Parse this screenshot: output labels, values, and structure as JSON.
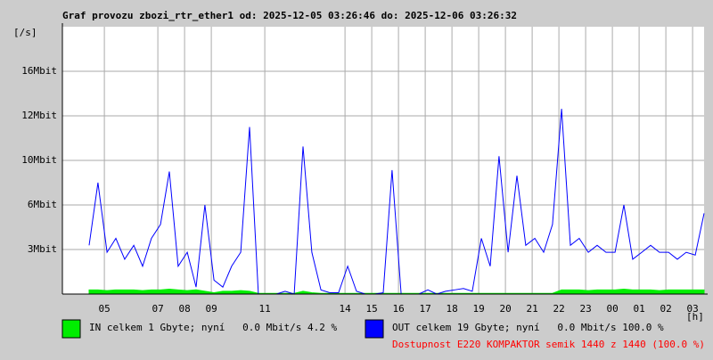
{
  "chart_data": {
    "type": "line",
    "title": "Graf provozu zbozi_rtr_ether1 od: 2025-12-05 03:26:46 do: 2025-12-06 03:26:32",
    "y_unit": "[/s]",
    "x_unit": "[h]",
    "note": "Dostupnost E220 KOMPAKTOR semik 1440 z 1440 (100.0 %)",
    "grid": true,
    "xlim": [
      0,
      24
    ],
    "ylim": [
      0,
      19.2
    ],
    "yticks": [
      {
        "value": 3.2,
        "label": "3Mbit"
      },
      {
        "value": 6.4,
        "label": "6Mbit"
      },
      {
        "value": 9.6,
        "label": "10Mbit"
      },
      {
        "value": 12.8,
        "label": "12Mbit"
      },
      {
        "value": 16,
        "label": "16Mbit"
      }
    ],
    "xticks": [
      {
        "value": 1.57,
        "label": "05"
      },
      {
        "value": 3.57,
        "label": "07"
      },
      {
        "value": 4.57,
        "label": "08"
      },
      {
        "value": 5.57,
        "label": "09"
      },
      {
        "value": 7.57,
        "label": "11"
      },
      {
        "value": 10.57,
        "label": "14"
      },
      {
        "value": 11.57,
        "label": "15"
      },
      {
        "value": 12.57,
        "label": "16"
      },
      {
        "value": 13.57,
        "label": "17"
      },
      {
        "value": 14.57,
        "label": "18"
      },
      {
        "value": 15.57,
        "label": "19"
      },
      {
        "value": 16.57,
        "label": "20"
      },
      {
        "value": 17.57,
        "label": "21"
      },
      {
        "value": 18.57,
        "label": "22"
      },
      {
        "value": 19.57,
        "label": "23"
      },
      {
        "value": 20.57,
        "label": "00"
      },
      {
        "value": 21.57,
        "label": "01"
      },
      {
        "value": 22.57,
        "label": "02"
      },
      {
        "value": 23.57,
        "label": "03"
      }
    ],
    "x": [
      0,
      0.33,
      0.67,
      1,
      1.33,
      1.67,
      2,
      2.33,
      2.67,
      3,
      3.33,
      3.67,
      4,
      4.33,
      4.67,
      5,
      5.33,
      5.67,
      6,
      6.33,
      6.67,
      7,
      7.33,
      7.67,
      8,
      8.33,
      8.67,
      9,
      9.33,
      9.67,
      10,
      10.33,
      10.67,
      11,
      11.33,
      11.67,
      12,
      12.33,
      12.67,
      13,
      13.33,
      13.67,
      14,
      14.33,
      14.67,
      15,
      15.33,
      15.67,
      16,
      16.33,
      16.67,
      17,
      17.33,
      17.67,
      18,
      18.33,
      18.67,
      19,
      19.33,
      19.67,
      20,
      20.33,
      20.67,
      21,
      21.33,
      21.67,
      22,
      22.33,
      22.67,
      23,
      23.33,
      23.67,
      24
    ],
    "series": [
      {
        "name": "IN celkem 1 Gbyte; nyní   0.0 Mbit/s 4.2 %",
        "color": "#00ee00",
        "fill": true,
        "values": [
          null,
          null,
          null,
          0.3,
          0.3,
          0.25,
          0.3,
          0.3,
          0.3,
          0.25,
          0.3,
          0.3,
          0.35,
          0.3,
          0.25,
          0.3,
          0.2,
          0.1,
          0.2,
          0.2,
          0.25,
          0.2,
          0.05,
          0.05,
          0.05,
          0.05,
          0.05,
          0.2,
          0.1,
          0.05,
          0.05,
          0.05,
          0.05,
          0.05,
          0.05,
          0.05,
          0.05,
          0.05,
          0.05,
          0.05,
          0.05,
          0.05,
          0.05,
          0.05,
          0.05,
          0.05,
          0.05,
          0.05,
          0.05,
          0.05,
          0.05,
          0.05,
          0.05,
          0.05,
          0.05,
          0.05,
          0.3,
          0.3,
          0.3,
          0.25,
          0.3,
          0.3,
          0.3,
          0.35,
          0.3,
          0.3,
          0.3,
          0.25,
          0.3,
          0.3,
          0.3,
          0.3,
          0.3
        ]
      },
      {
        "name": "OUT celkem 19 Gbyte; nyní   0.0 Mbit/s 100.0 %",
        "color": "#0000ff",
        "fill": false,
        "values": [
          null,
          null,
          null,
          3.5,
          8,
          3,
          4,
          2.5,
          3.5,
          2,
          4,
          5,
          8.8,
          2,
          3,
          0.5,
          6.4,
          1,
          0.5,
          2,
          3,
          12,
          0,
          0,
          0,
          0.2,
          0,
          10.6,
          3,
          0.3,
          0.1,
          0.1,
          2,
          0.2,
          0,
          0,
          0.1,
          8.9,
          0,
          0,
          0,
          0.3,
          0,
          0.2,
          0.3,
          0.4,
          0.2,
          4,
          2,
          9.9,
          3,
          8.5,
          3.5,
          4,
          3,
          5,
          13.3,
          3.5,
          4,
          3,
          3.5,
          3,
          3,
          6.4,
          2.5,
          3,
          3.5,
          3,
          3,
          2.5,
          3,
          2.8,
          5.8
        ]
      }
    ]
  }
}
